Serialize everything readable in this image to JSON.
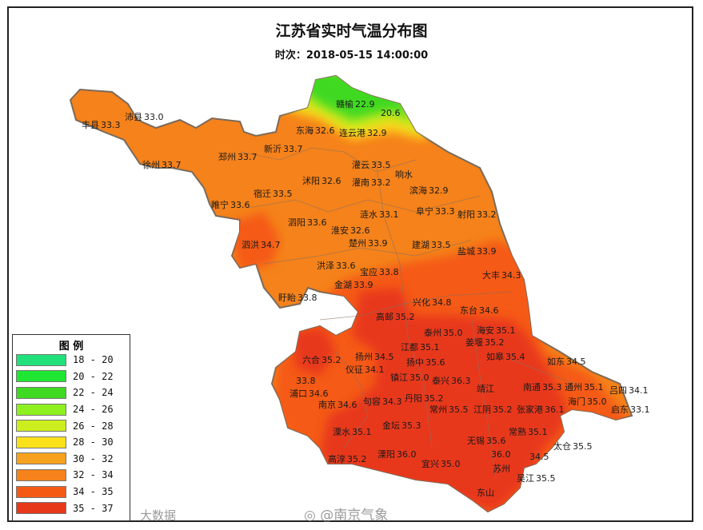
{
  "title": "江苏省实时气温分布图",
  "subtitle": "时次：2018-05-15 14:00:00",
  "legend": {
    "title": "图  例",
    "items": [
      {
        "label": "18 - 20",
        "color": "#22e07a"
      },
      {
        "label": "20 - 22",
        "color": "#1ee632"
      },
      {
        "label": "22 - 24",
        "color": "#3fd922"
      },
      {
        "label": "24 - 26",
        "color": "#8ef01e"
      },
      {
        "label": "26 - 28",
        "color": "#cdee1e"
      },
      {
        "label": "28 - 30",
        "color": "#fbe11a"
      },
      {
        "label": "30 - 32",
        "color": "#f7a21e"
      },
      {
        "label": "32 - 34",
        "color": "#f5821a"
      },
      {
        "label": "34 - 35",
        "color": "#f55a14"
      },
      {
        "label": "35 - 37",
        "color": "#e8381a"
      }
    ]
  },
  "stations": [
    {
      "name": "丰县",
      "value": "33.3"
    },
    {
      "name": "沛县",
      "value": "33.0"
    },
    {
      "name": "徐州",
      "value": "33.7"
    },
    {
      "name": "邳州",
      "value": "33.7"
    },
    {
      "name": "新沂",
      "value": "33.7"
    },
    {
      "name": "睢宁",
      "value": "33.6"
    },
    {
      "name": "宿迁",
      "value": "33.5"
    },
    {
      "name": "赣榆",
      "value": "22.9"
    },
    {
      "name": "",
      "value": "20.6"
    },
    {
      "name": "连云港",
      "value": "32.9"
    },
    {
      "name": "东海",
      "value": "32.6"
    },
    {
      "name": "灌云",
      "value": "33.5"
    },
    {
      "name": "灌南",
      "value": "33.2"
    },
    {
      "name": "响水",
      "value": ""
    },
    {
      "name": "沭阳",
      "value": "32.6"
    },
    {
      "name": "滨海",
      "value": "32.9"
    },
    {
      "name": "阜宁",
      "value": "33.3"
    },
    {
      "name": "射阳",
      "value": "33.2"
    },
    {
      "name": "涟水",
      "value": "33.1"
    },
    {
      "name": "泗阳",
      "value": "33.6"
    },
    {
      "name": "淮安",
      "value": "32.6"
    },
    {
      "name": "泗洪",
      "value": "34.7"
    },
    {
      "name": "楚州",
      "value": "33.9"
    },
    {
      "name": "建湖",
      "value": "33.5"
    },
    {
      "name": "盐城",
      "value": "33.9"
    },
    {
      "name": "洪泽",
      "value": "33.6"
    },
    {
      "name": "宝应",
      "value": "33.8"
    },
    {
      "name": "大丰",
      "value": "34.3"
    },
    {
      "name": "金湖",
      "value": "33.9"
    },
    {
      "name": "盱眙",
      "value": "33.8"
    },
    {
      "name": "兴化",
      "value": "34.8"
    },
    {
      "name": "东台",
      "value": "34.6"
    },
    {
      "name": "高邮",
      "value": "35.2"
    },
    {
      "name": "六合",
      "value": "35.2"
    },
    {
      "name": "扬州",
      "value": "34.5"
    },
    {
      "name": "江都",
      "value": "35.1"
    },
    {
      "name": "泰州",
      "value": "35.0"
    },
    {
      "name": "姜堰",
      "value": "35.2"
    },
    {
      "name": "海安",
      "value": "35.1"
    },
    {
      "name": "如皋",
      "value": "35.4"
    },
    {
      "name": "仪征",
      "value": "34.1"
    },
    {
      "name": "镇江",
      "value": "35.0"
    },
    {
      "name": "扬中",
      "value": "35.6"
    },
    {
      "name": "泰兴",
      "value": "36.3"
    },
    {
      "name": "靖江",
      "value": ""
    },
    {
      "name": "如东",
      "value": "34.5"
    },
    {
      "name": "",
      "value": "33.8"
    },
    {
      "name": "浦口",
      "value": "34.6"
    },
    {
      "name": "南京",
      "value": "34.6"
    },
    {
      "name": "句容",
      "value": "34.3"
    },
    {
      "name": "丹阳",
      "value": "35.2"
    },
    {
      "name": "常州",
      "value": "35.5"
    },
    {
      "name": "江阴",
      "value": "35.2"
    },
    {
      "name": "张家港",
      "value": "36.1"
    },
    {
      "name": "南通",
      "value": "35.3"
    },
    {
      "name": "通州",
      "value": "35.1"
    },
    {
      "name": "海门",
      "value": "35.0"
    },
    {
      "name": "吕四",
      "value": "34.1"
    },
    {
      "name": "启东",
      "value": "33.1"
    },
    {
      "name": "金坛",
      "value": "35.3"
    },
    {
      "name": "溧水",
      "value": "35.1"
    },
    {
      "name": "常熟",
      "value": "35.1"
    },
    {
      "name": "无锡",
      "value": "35.6"
    },
    {
      "name": "太仓",
      "value": "35.5"
    },
    {
      "name": "",
      "value": "34.5"
    },
    {
      "name": "高淳",
      "value": "35.2"
    },
    {
      "name": "溧阳",
      "value": "36.0"
    },
    {
      "name": "宜兴",
      "value": "35.0"
    },
    {
      "name": "",
      "value": "36.0"
    },
    {
      "name": "苏州",
      "value": ""
    },
    {
      "name": "吴江",
      "value": "35.5"
    },
    {
      "name": "东山",
      "value": ""
    }
  ],
  "watermarks": {
    "source": "@南京气象",
    "corner": "大数据"
  }
}
